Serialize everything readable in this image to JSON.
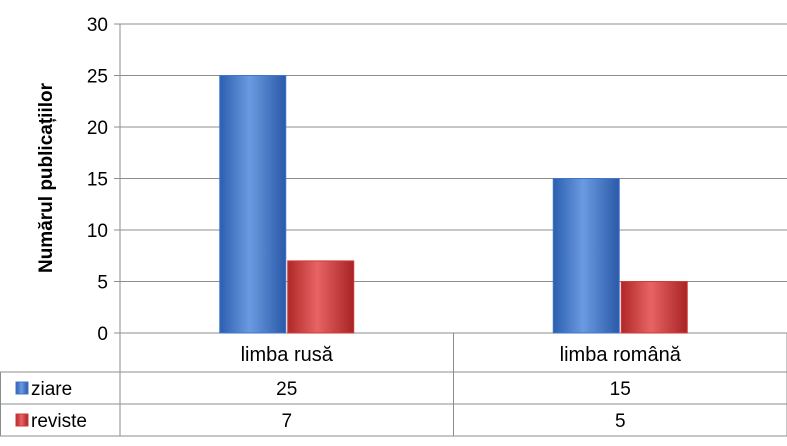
{
  "chart_data": {
    "type": "bar",
    "ylabel": "Numărul publicațiilor",
    "xlabel": "",
    "title": "",
    "categories": [
      "limba rusă",
      "limba română"
    ],
    "series": [
      {
        "name": "ziare",
        "values": [
          25,
          15
        ],
        "color": "#3f76c7"
      },
      {
        "name": "reviste",
        "values": [
          7,
          5
        ],
        "color": "#cf3a3a"
      }
    ],
    "ylim": [
      0,
      30
    ],
    "yticks": [
      0,
      5,
      10,
      15,
      20,
      25,
      30
    ],
    "grid": true,
    "legend": "data-table"
  }
}
